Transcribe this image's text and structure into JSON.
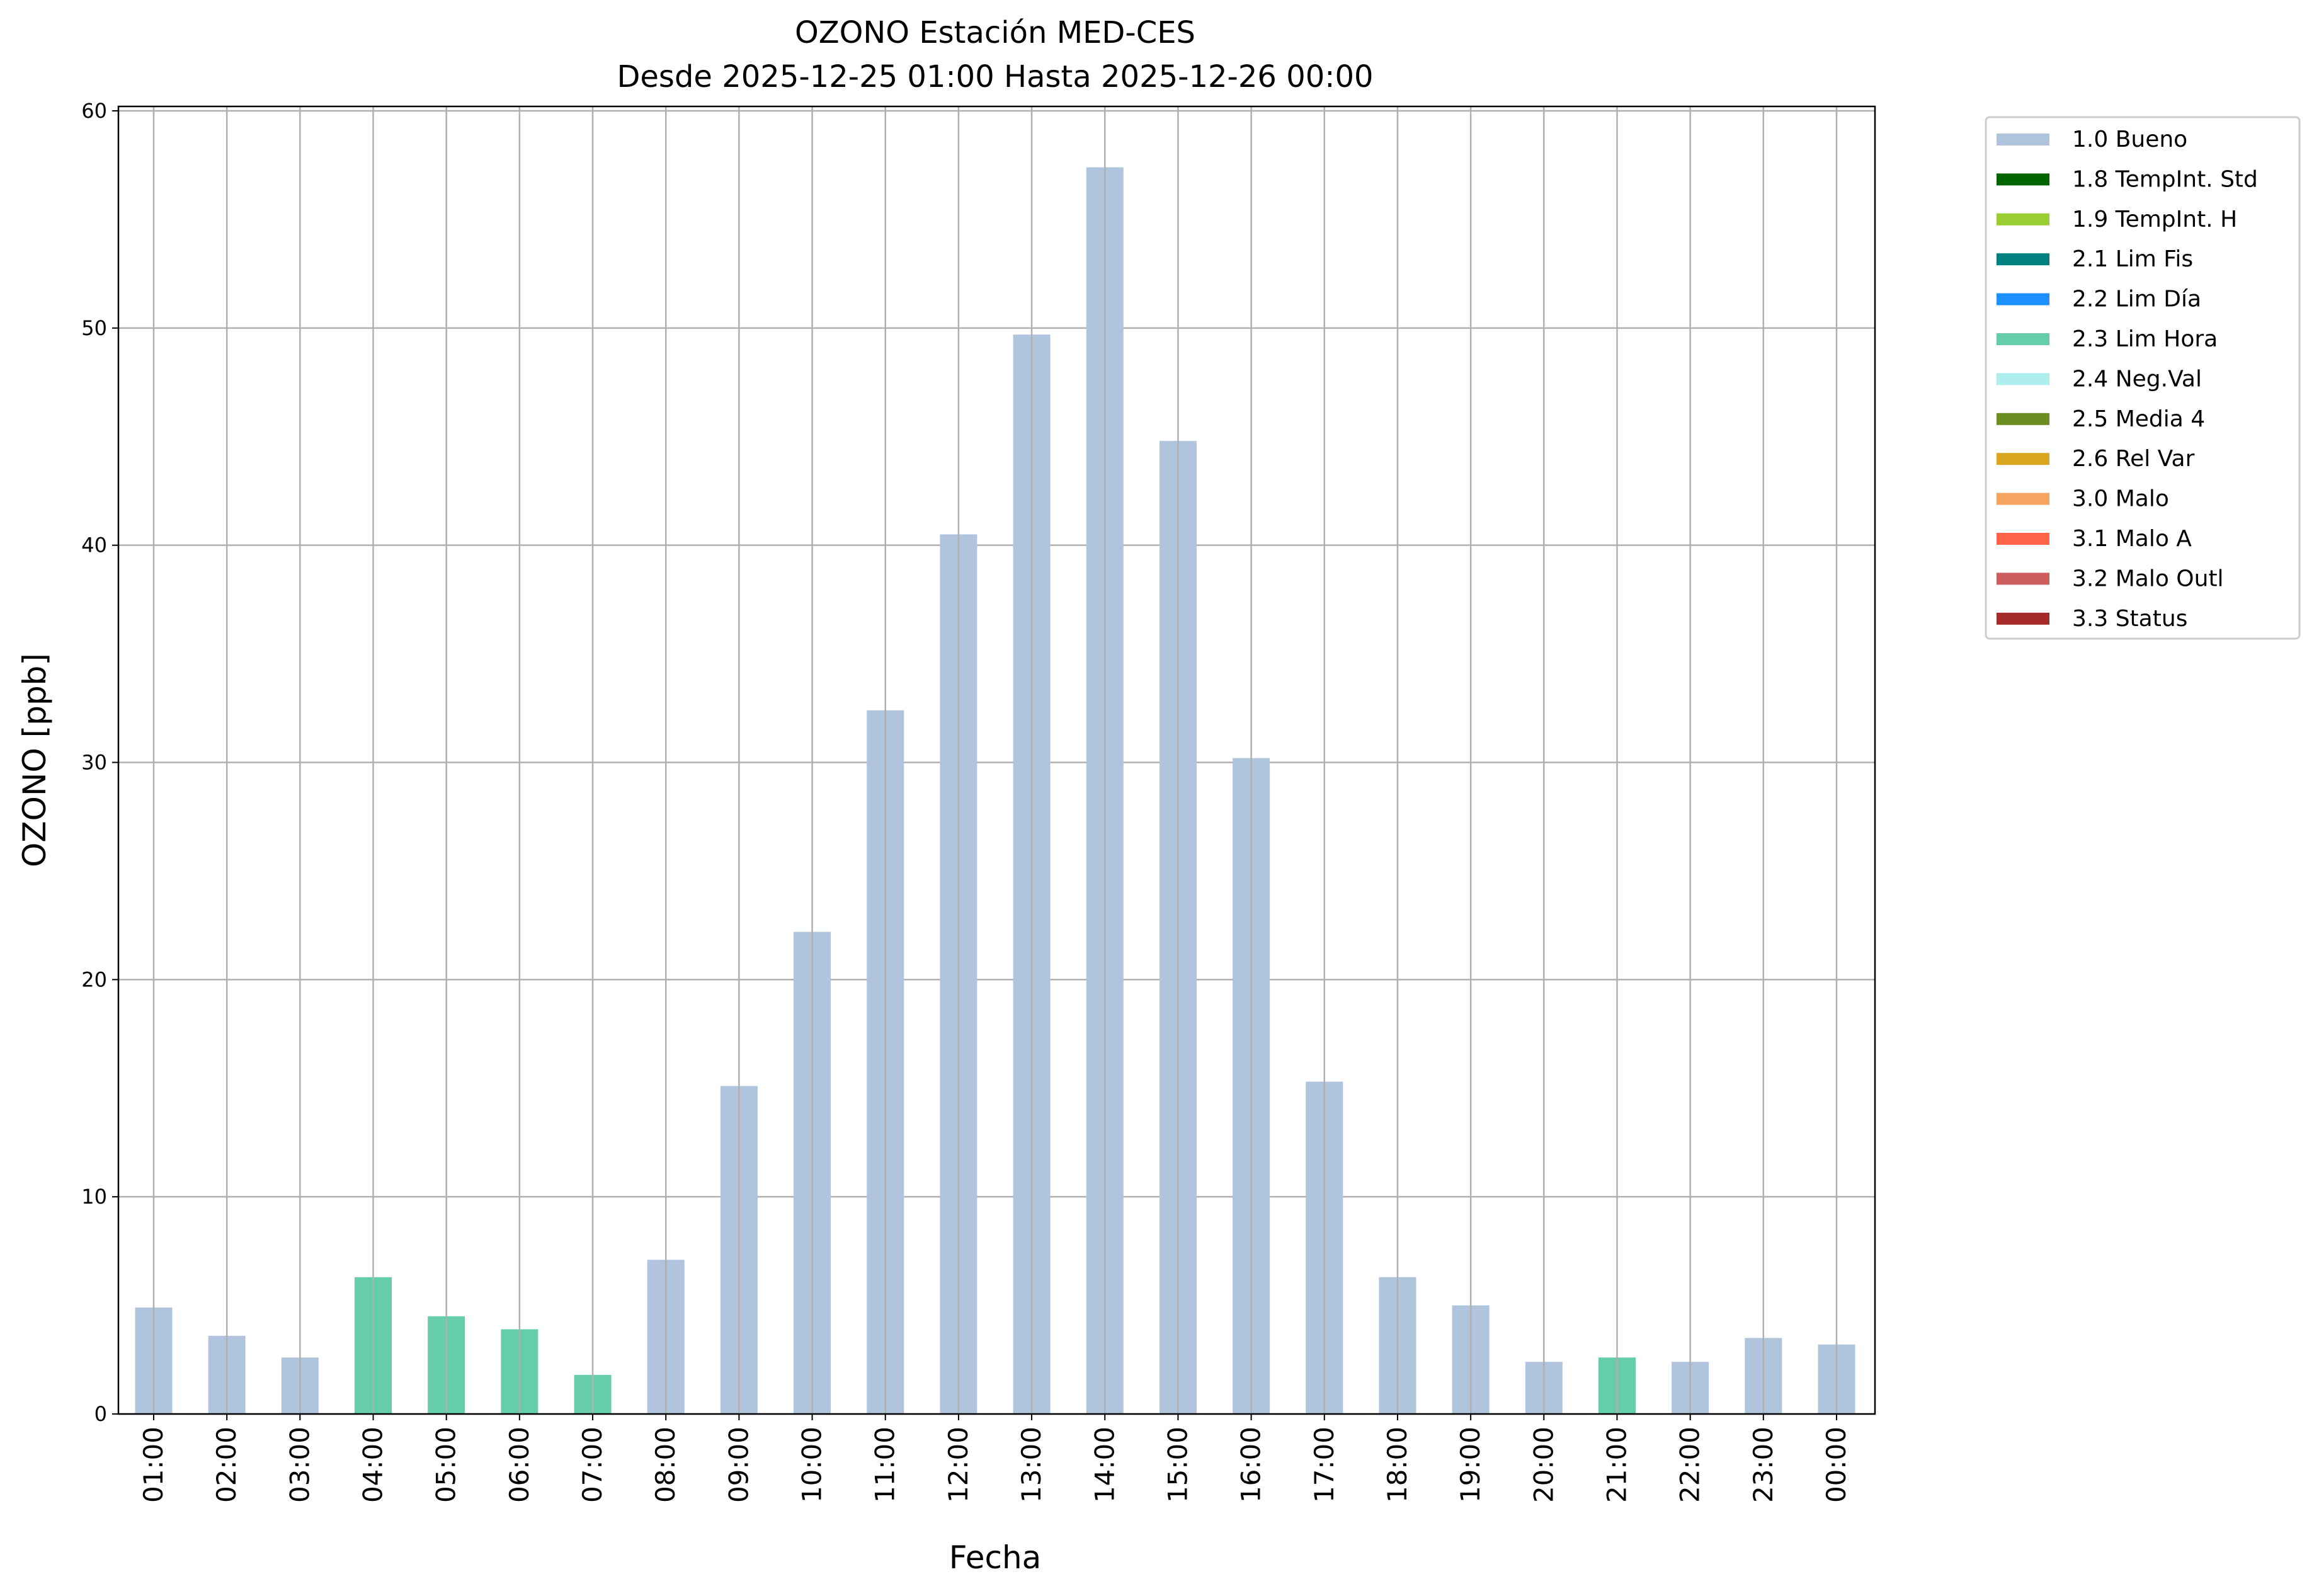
{
  "chart_data": {
    "type": "bar",
    "title": "OZONO Estación MED-CES",
    "subtitle": "Desde 2025-12-25 01:00 Hasta 2025-12-26 00:00",
    "xlabel": "Fecha",
    "ylabel": "OZONO [ppb]",
    "ylim": [
      0,
      60
    ],
    "yticks": [
      0,
      10,
      20,
      30,
      40,
      50,
      60
    ],
    "grid": true,
    "legend_placement": "outside-top-right",
    "categories": [
      "01:00",
      "02:00",
      "03:00",
      "04:00",
      "05:00",
      "06:00",
      "07:00",
      "08:00",
      "09:00",
      "10:00",
      "11:00",
      "12:00",
      "13:00",
      "14:00",
      "15:00",
      "16:00",
      "17:00",
      "18:00",
      "19:00",
      "20:00",
      "21:00",
      "22:00",
      "23:00",
      "00:00"
    ],
    "values": [
      4.9,
      3.6,
      2.6,
      6.3,
      4.5,
      3.9,
      1.8,
      7.1,
      15.1,
      22.2,
      32.4,
      40.5,
      49.7,
      57.4,
      44.8,
      30.2,
      15.3,
      6.3,
      5.0,
      2.4,
      2.6,
      2.4,
      3.5,
      3.2
    ],
    "flags": [
      "1.0 Bueno",
      "1.0 Bueno",
      "1.0 Bueno",
      "2.3 Lim Hora",
      "2.3 Lim Hora",
      "2.3 Lim Hora",
      "2.3 Lim Hora",
      "1.0 Bueno",
      "1.0 Bueno",
      "1.0 Bueno",
      "1.0 Bueno",
      "1.0 Bueno",
      "1.0 Bueno",
      "1.0 Bueno",
      "1.0 Bueno",
      "1.0 Bueno",
      "1.0 Bueno",
      "1.0 Bueno",
      "1.0 Bueno",
      "1.0 Bueno",
      "2.3 Lim Hora",
      "1.0 Bueno",
      "1.0 Bueno",
      "1.0 Bueno"
    ],
    "legend": [
      {
        "name": "1.0 Bueno",
        "color": "#b0c4de"
      },
      {
        "name": "1.8 TempInt. Std",
        "color": "#006400"
      },
      {
        "name": "1.9 TempInt. H",
        "color": "#9acd32"
      },
      {
        "name": "2.1 Lim Fis",
        "color": "#008080"
      },
      {
        "name": "2.2 Lim Día",
        "color": "#1e90ff"
      },
      {
        "name": "2.3 Lim Hora",
        "color": "#66cdaa"
      },
      {
        "name": "2.4 Neg.Val",
        "color": "#afeeee"
      },
      {
        "name": "2.5 Media 4",
        "color": "#6b8e23"
      },
      {
        "name": "2.6 Rel Var",
        "color": "#daa520"
      },
      {
        "name": "3.0 Malo",
        "color": "#f4a460"
      },
      {
        "name": "3.1 Malo A",
        "color": "#ff6347"
      },
      {
        "name": "3.2 Malo Outl",
        "color": "#cd5c5c"
      },
      {
        "name": "3.3 Status",
        "color": "#a52a2a"
      }
    ]
  }
}
